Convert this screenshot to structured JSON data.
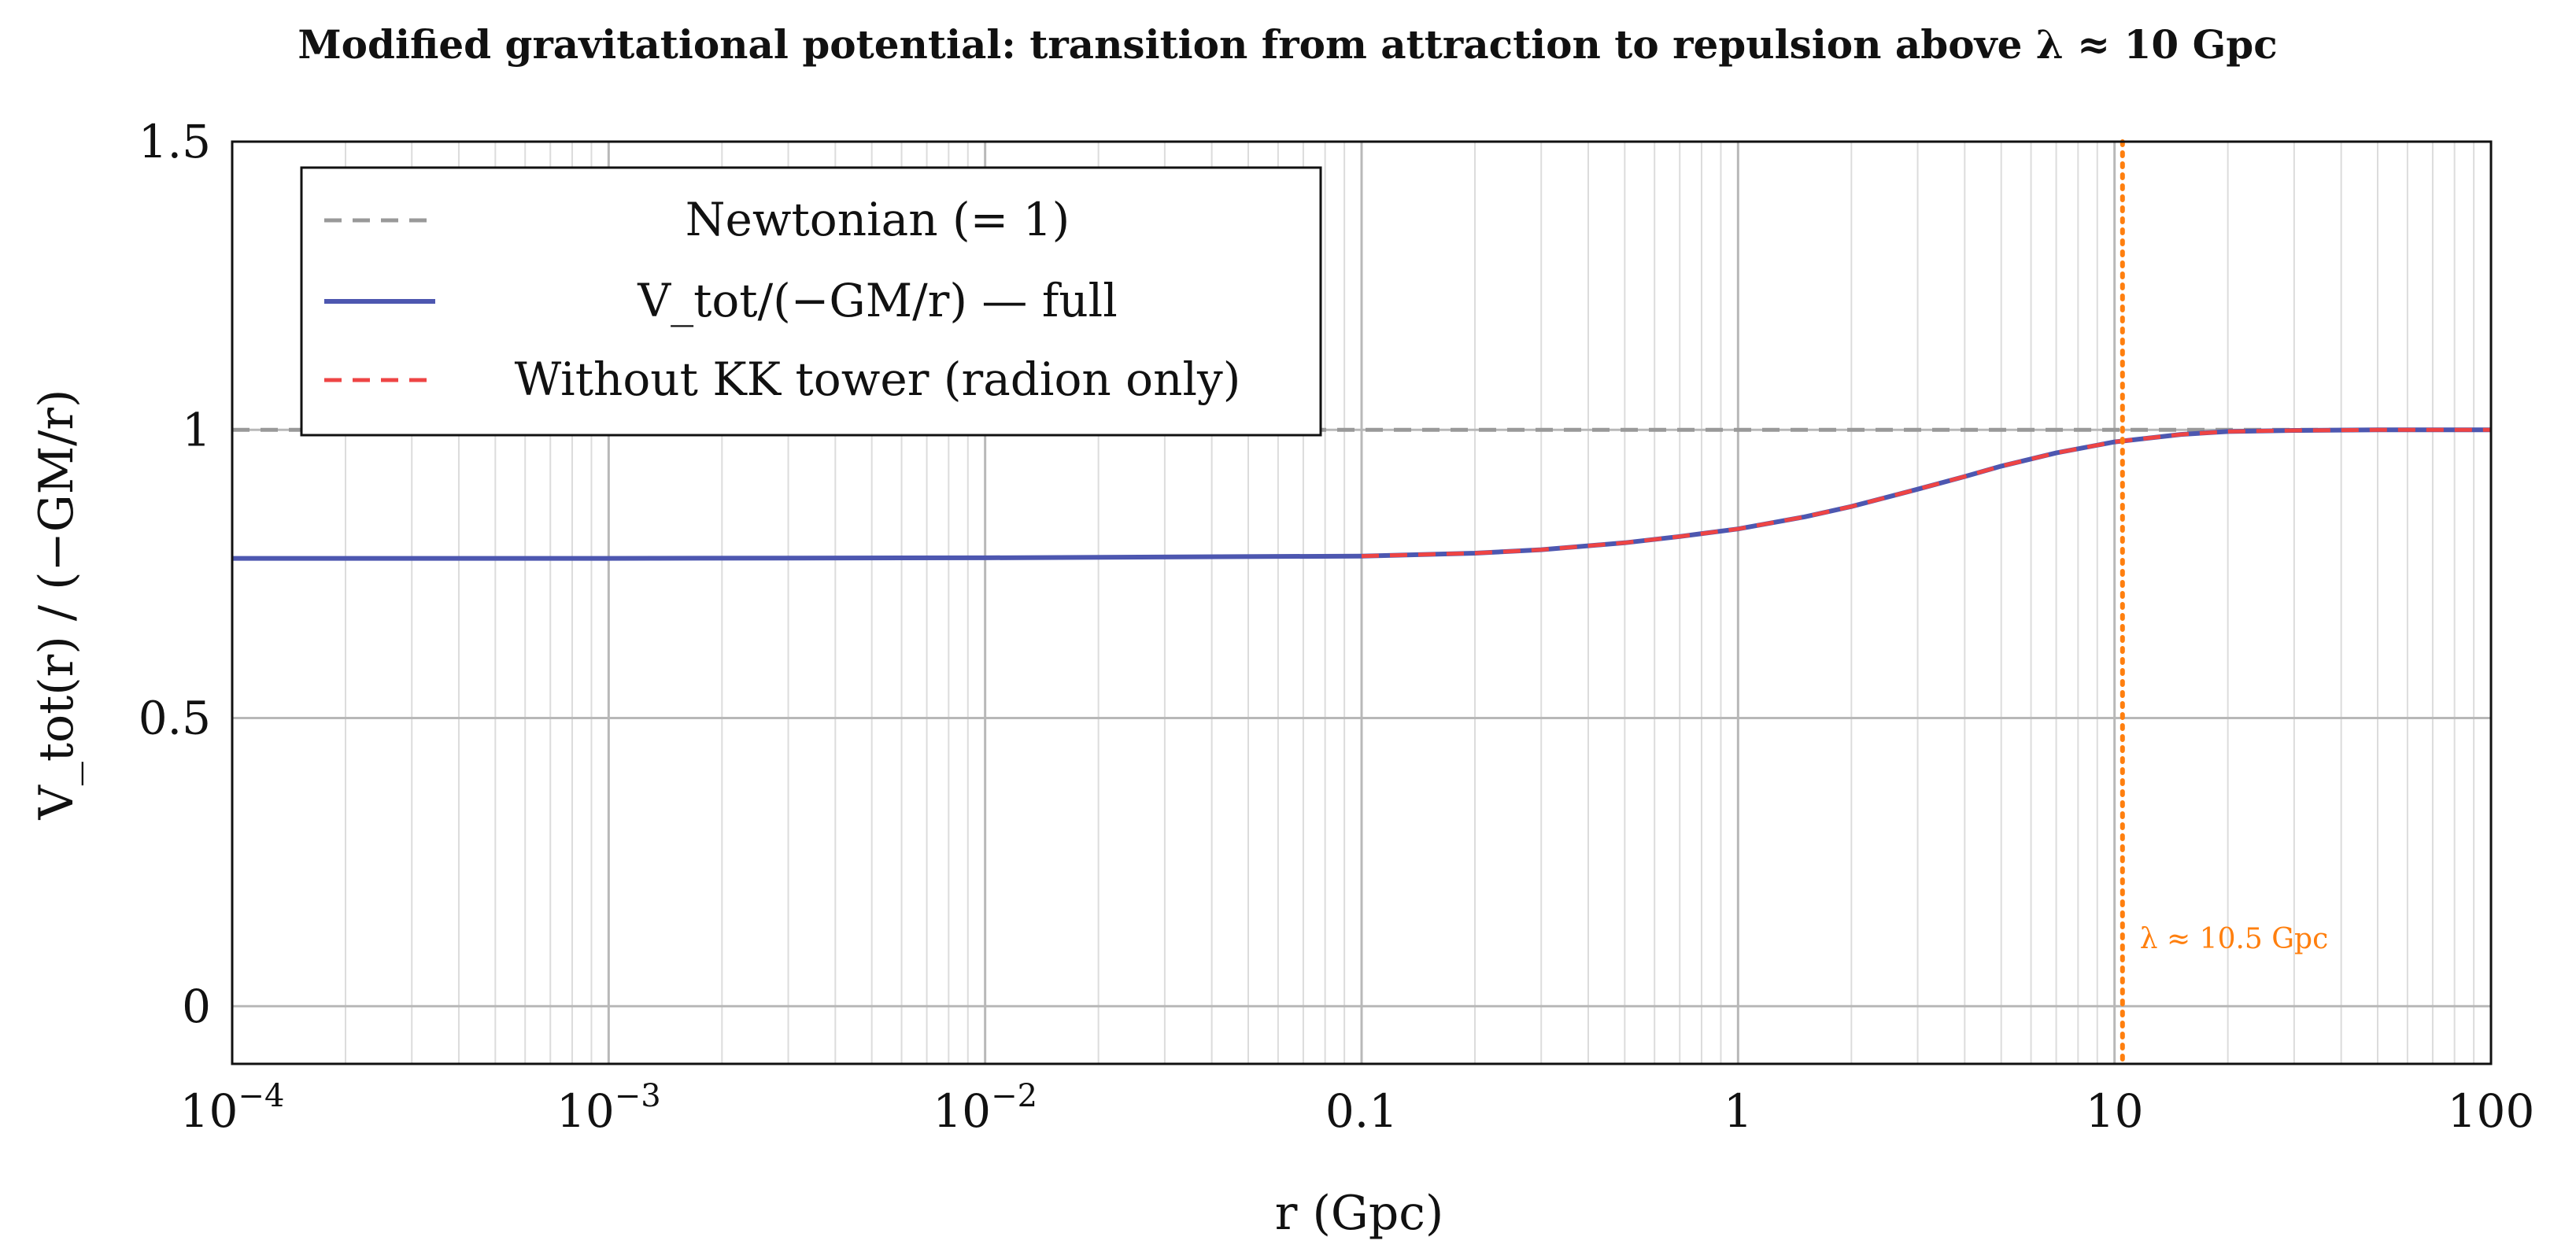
{
  "chart_data": {
    "type": "line",
    "title": "Modified gravitational potential: transition from attraction to repulsion above λ ≈ 10 Gpc",
    "xlabel": "r (Gpc)",
    "ylabel": "V_tot(r) / (−GM/r)",
    "xscale": "log",
    "xlim": [
      0.0001,
      100
    ],
    "ylim": [
      -0.1,
      1.5
    ],
    "xticks": [
      {
        "value": 0.0001,
        "base": "10",
        "exp": "−4"
      },
      {
        "value": 0.001,
        "base": "10",
        "exp": "−3"
      },
      {
        "value": 0.01,
        "base": "10",
        "exp": "−2"
      },
      {
        "value": 0.1,
        "base": "0.1",
        "exp": ""
      },
      {
        "value": 1,
        "base": "1",
        "exp": ""
      },
      {
        "value": 10,
        "base": "10",
        "exp": ""
      },
      {
        "value": 100,
        "base": "100",
        "exp": ""
      }
    ],
    "yticks": [
      {
        "value": 0,
        "label": "0"
      },
      {
        "value": 0.5,
        "label": "0.5"
      },
      {
        "value": 1,
        "label": "1"
      },
      {
        "value": 1.5,
        "label": "1.5"
      }
    ],
    "grid": true,
    "legend_position": "top-left",
    "series": [
      {
        "name": "Newtonian (= 1)",
        "color": "#999999",
        "style": "dashed",
        "x": [
          0.0001,
          100
        ],
        "y": [
          1,
          1
        ]
      },
      {
        "name": "V_tot/(−GM/r) — full",
        "color": "#4d57b0",
        "style": "solid",
        "x": [
          0.0001,
          0.001,
          0.01,
          0.1,
          0.2,
          0.3,
          0.5,
          0.7,
          1,
          1.5,
          2,
          3,
          4,
          5,
          7,
          10,
          15,
          20,
          30,
          50,
          100
        ],
        "y": [
          0.777,
          0.777,
          0.778,
          0.781,
          0.786,
          0.792,
          0.804,
          0.815,
          0.828,
          0.849,
          0.867,
          0.897,
          0.919,
          0.937,
          0.96,
          0.979,
          0.992,
          0.997,
          0.999,
          1.0,
          1.0
        ]
      },
      {
        "name": "Without KK tower (radion only)",
        "color": "#ee4444",
        "style": "dashed",
        "x": [
          0.1,
          0.2,
          0.3,
          0.5,
          0.7,
          1,
          1.5,
          2,
          3,
          4,
          5,
          7,
          10,
          15,
          20,
          30,
          50,
          100
        ],
        "y": [
          0.781,
          0.786,
          0.792,
          0.804,
          0.815,
          0.828,
          0.849,
          0.867,
          0.897,
          0.919,
          0.937,
          0.96,
          0.979,
          0.992,
          0.997,
          0.999,
          1.0,
          1.0
        ]
      }
    ],
    "annotations": [
      {
        "type": "vline",
        "x": 10.5,
        "color": "#ff7f0e",
        "style": "dotted",
        "text": "λ ≈ 10.5 Gpc"
      }
    ]
  }
}
